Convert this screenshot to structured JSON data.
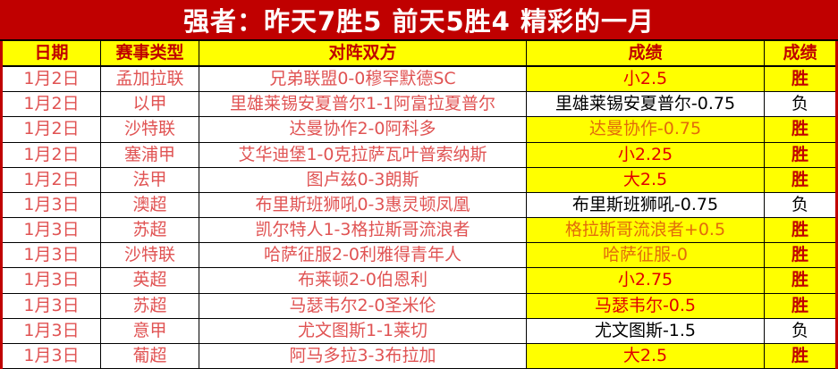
{
  "title": "强者：昨天7胜5 前天5胜4 精彩的一月",
  "colors": {
    "banner_red": "#c00000",
    "highlight_yellow": "#ffff00",
    "data_text_red": "#e05353",
    "pick_red": "#e00000",
    "pick_orange": "#e26b0a",
    "loss_black": "#000000",
    "title_text": "#ffffff"
  },
  "table": {
    "headers": [
      "日期",
      "赛事类型",
      "对阵双方",
      "成绩",
      "成绩"
    ],
    "rows": [
      {
        "date": "1月2日",
        "league": "孟加拉联",
        "match": "兄弟联盟0-0穆罕默德SC",
        "pick": "小2.5",
        "pick_color": "red",
        "outcome": "胜",
        "status": "win"
      },
      {
        "date": "1月2日",
        "league": "以甲",
        "match": "里雄莱锡安夏普尔1-1阿富拉夏普尔",
        "pick": "里雄莱锡安夏普尔-0.75",
        "pick_color": "black",
        "outcome": "负",
        "status": "loss"
      },
      {
        "date": "1月2日",
        "league": "沙特联",
        "match": "达曼协作2-0阿科多",
        "pick": "达曼协作-0.75",
        "pick_color": "orange",
        "outcome": "胜",
        "status": "win"
      },
      {
        "date": "1月2日",
        "league": "塞浦甲",
        "match": "艾华迪堡1-0克拉萨瓦叶普索纳斯",
        "pick": "小2.25",
        "pick_color": "red",
        "outcome": "胜",
        "status": "win"
      },
      {
        "date": "1月2日",
        "league": "法甲",
        "match": "图卢兹0-3朗斯",
        "pick": "大2.5",
        "pick_color": "red",
        "outcome": "胜",
        "status": "win"
      },
      {
        "date": "1月3日",
        "league": "澳超",
        "match": "布里斯班狮吼0-3惠灵顿凤凰",
        "pick": "布里斯班狮吼-0.75",
        "pick_color": "black",
        "outcome": "负",
        "status": "loss"
      },
      {
        "date": "1月3日",
        "league": "苏超",
        "match": "凯尔特人1-3格拉斯哥流浪者",
        "pick": "格拉斯哥流浪者+0.5",
        "pick_color": "orange",
        "outcome": "胜",
        "status": "win"
      },
      {
        "date": "1月3日",
        "league": "沙特联",
        "match": "哈萨征服2-0利雅得青年人",
        "pick": "哈萨征服-0",
        "pick_color": "orange",
        "outcome": "胜",
        "status": "win"
      },
      {
        "date": "1月3日",
        "league": "英超",
        "match": "布莱顿2-0伯恩利",
        "pick": "小2.75",
        "pick_color": "red",
        "outcome": "胜",
        "status": "win"
      },
      {
        "date": "1月3日",
        "league": "苏超",
        "match": "马瑟韦尔2-0圣米伦",
        "pick": "马瑟韦尔-0.5",
        "pick_color": "red",
        "outcome": "胜",
        "status": "win"
      },
      {
        "date": "1月3日",
        "league": "意甲",
        "match": "尤文图斯1-1莱切",
        "pick": "尤文图斯-1.5",
        "pick_color": "black",
        "outcome": "负",
        "status": "loss"
      },
      {
        "date": "1月3日",
        "league": "葡超",
        "match": "阿马多拉3-3布拉加",
        "pick": "大2.5",
        "pick_color": "red",
        "outcome": "胜",
        "status": "win"
      }
    ]
  }
}
